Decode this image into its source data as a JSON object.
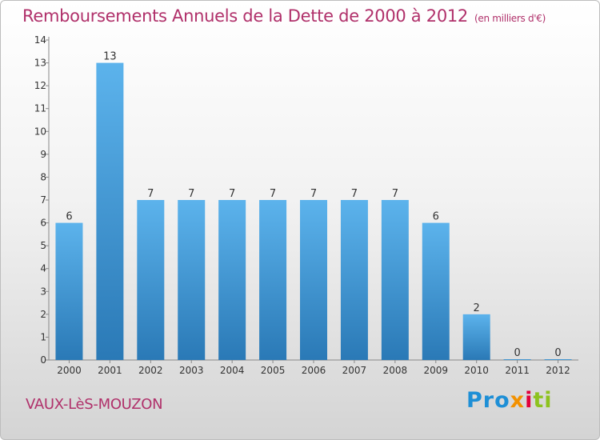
{
  "title": "Remboursements Annuels de la Dette de 2000 à 2012",
  "subtitle": "(en milliers d'€)",
  "commune": "VAUX-LèS-MOUZON",
  "logo": {
    "p1": "Pro",
    "p2": "x",
    "p3": "i",
    "p4": "ti"
  },
  "colors": {
    "bar_top": "#5cb3ec",
    "bar_bottom": "#2a79b6",
    "title": "#b0306a"
  },
  "chart_data": {
    "type": "bar",
    "categories": [
      "2000",
      "2001",
      "2002",
      "2003",
      "2004",
      "2005",
      "2006",
      "2007",
      "2008",
      "2009",
      "2010",
      "2011",
      "2012"
    ],
    "values": [
      6,
      13,
      7,
      7,
      7,
      7,
      7,
      7,
      7,
      6,
      2,
      0,
      0
    ],
    "y_ticks": [
      0,
      1,
      2,
      3,
      4,
      5,
      6,
      7,
      8,
      9,
      10,
      11,
      12,
      13,
      14
    ],
    "ylim": [
      0,
      14
    ],
    "title": "Remboursements Annuels de la Dette de 2000 à 2012",
    "xlabel": "",
    "ylabel": "",
    "grid": false
  }
}
